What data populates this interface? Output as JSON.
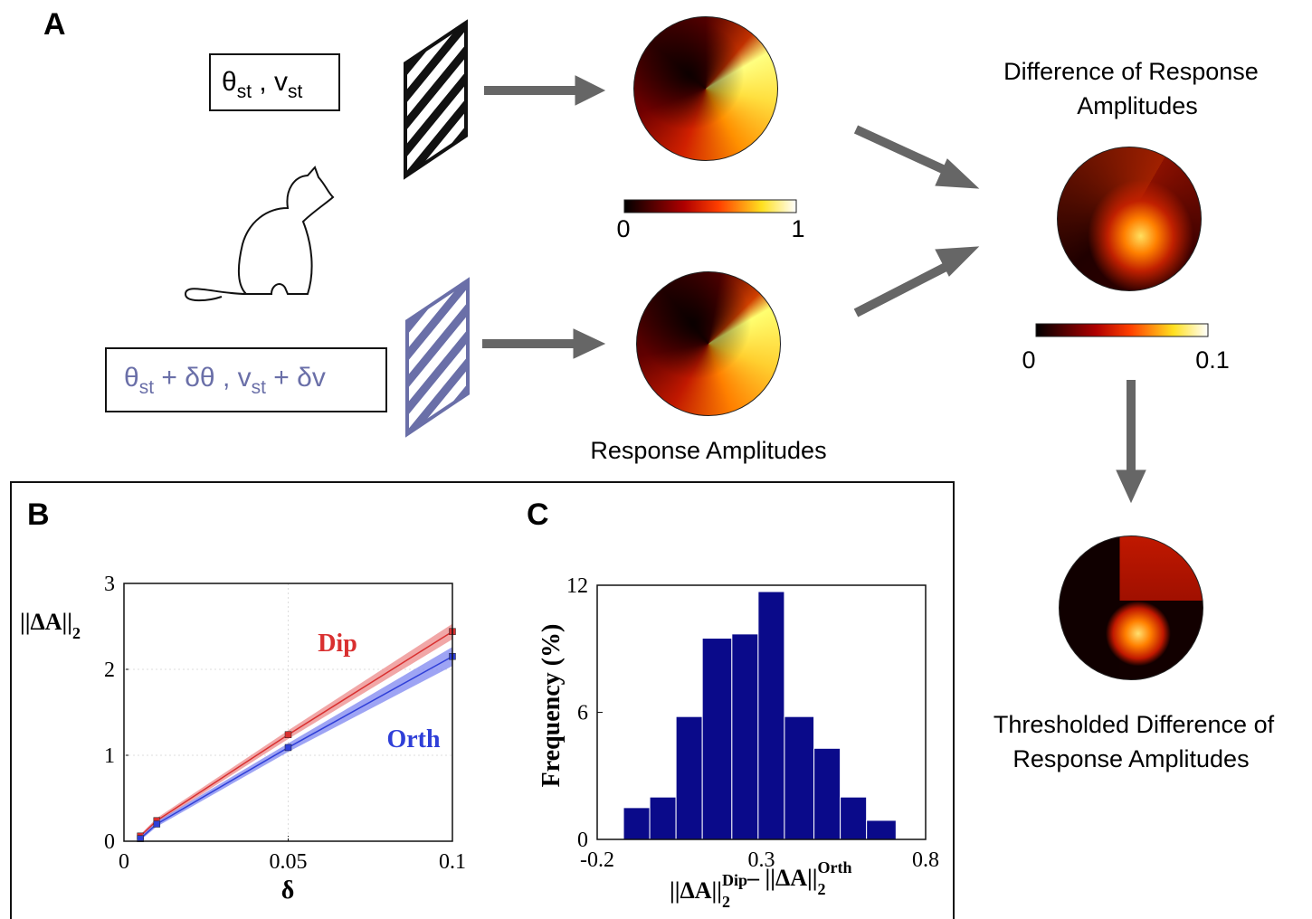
{
  "panel_a": {
    "label": "A",
    "stimulus_1": [
      "θ",
      "st",
      " , v",
      "st"
    ],
    "stimulus_2": [
      "θ",
      "st",
      " + δθ , v",
      "st",
      " + δv"
    ],
    "response_colorbar_ticks": [
      0,
      1
    ],
    "difference_colorbar_ticks": [
      0,
      0.1
    ],
    "response_title": "Response Amplitudes",
    "difference_title": [
      "Difference of Response",
      "Amplitudes"
    ],
    "thresholded_title": [
      "Thresholded Difference of",
      "Response Amplitudes"
    ]
  },
  "chart_data": [
    {
      "type": "line",
      "label": "B",
      "y_label": [
        "||ΔA||",
        "2"
      ],
      "x_label": "δ",
      "x": [
        0.005,
        0.01,
        0.05,
        0.1
      ],
      "xlim": [
        0,
        0.1
      ],
      "xticks": [
        0,
        0.05,
        0.1
      ],
      "ylim": [
        0,
        3
      ],
      "yticks": [
        0,
        1,
        2,
        3
      ],
      "grid": true,
      "series": [
        {
          "name": "Dip",
          "color": "#d93030",
          "band_color": "#ec8a8a",
          "values": [
            0.06,
            0.24,
            1.24,
            2.44
          ],
          "lower": [
            0.04,
            0.21,
            1.19,
            2.35
          ],
          "upper": [
            0.08,
            0.27,
            1.29,
            2.53
          ]
        },
        {
          "name": "Orth",
          "color": "#2f3fd8",
          "band_color": "#7d86f0",
          "values": [
            0.03,
            0.2,
            1.09,
            2.15
          ],
          "lower": [
            0.01,
            0.17,
            1.04,
            2.04
          ],
          "upper": [
            0.05,
            0.23,
            1.14,
            2.26
          ]
        }
      ]
    },
    {
      "type": "histogram",
      "label": "C",
      "y_label": "Frequency (%)",
      "x_label": [
        {
          "text": "||ΔA||",
          "sub": "2",
          "sup": "Dip"
        },
        {
          "text": "– ||ΔA||",
          "sub": "2",
          "sup": "Orth"
        }
      ],
      "bins": [
        -0.12,
        -0.04,
        0.04,
        0.12,
        0.21,
        0.29,
        0.37,
        0.46,
        0.54,
        0.62,
        0.71
      ],
      "values": [
        1.5,
        2,
        5.8,
        9.5,
        9.7,
        11.7,
        5.8,
        4.3,
        2,
        0.9
      ],
      "color": "#0a0a8a",
      "xlim": [
        -0.2,
        0.8
      ],
      "xticks": [
        -0.2,
        0.3,
        0.8
      ],
      "ylim": [
        0,
        12
      ],
      "yticks": [
        0,
        6,
        12
      ]
    }
  ]
}
